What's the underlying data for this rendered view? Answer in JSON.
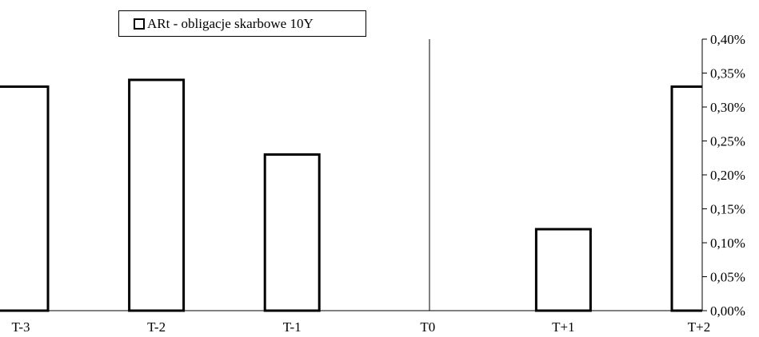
{
  "chart_data": {
    "type": "bar",
    "categories": [
      "T-3",
      "T-2",
      "T-1",
      "T0",
      "T+1",
      "T+2"
    ],
    "series": [
      {
        "name": "ARt - obligacje skarbowe 10Y",
        "values": [
          0.33,
          0.34,
          0.23,
          0.0,
          0.12,
          0.33
        ]
      }
    ],
    "value_unit": "%",
    "y_axis_side": "right",
    "ylim": [
      0,
      0.4
    ],
    "yticks": [
      "0,00%",
      "0,05%",
      "0,10%",
      "0,15%",
      "0,20%",
      "0,25%",
      "0,30%",
      "0,35%",
      "0,40%"
    ],
    "legend_position": "top-left",
    "grid": false,
    "colors": {
      "bar_fill": "#ffffff",
      "bar_stroke": "#000000",
      "axis": "#000000"
    }
  }
}
